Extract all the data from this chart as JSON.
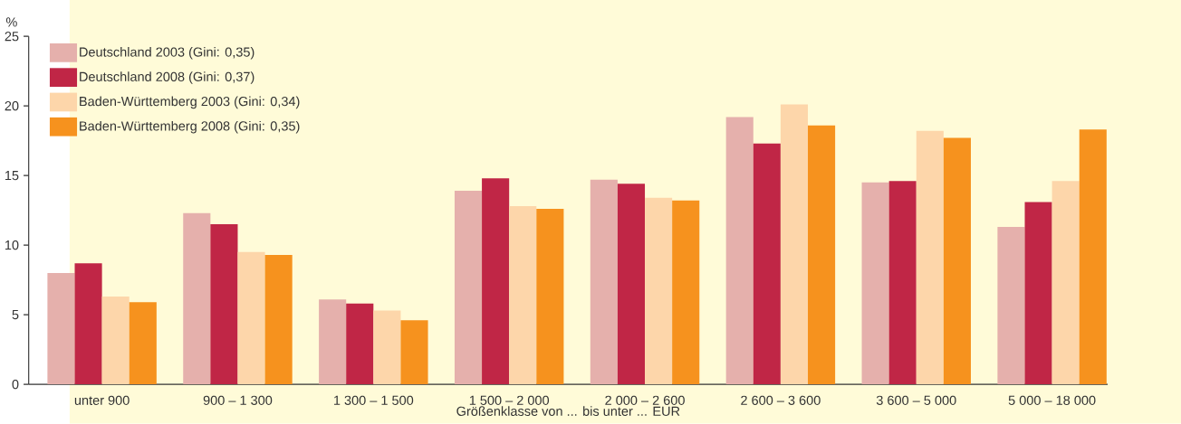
{
  "chart_data": {
    "type": "bar",
    "xlabel": "Größenklasse von ... bis unter ... EUR",
    "ylabel": "%",
    "categories": [
      "unter 900",
      "900 – 1 300",
      "1 300 – 1 500",
      "1 500 – 2 000",
      "2 000 – 2 600",
      "2 600 – 3 600",
      "3 600 – 5 000",
      "5 000 – 18 000"
    ],
    "series": [
      {
        "name": "Deutschland 2003 (Gini: 0,35)",
        "color": "#e5b0ac",
        "values": [
          8.0,
          12.3,
          6.1,
          13.9,
          14.7,
          19.2,
          14.5,
          11.3
        ]
      },
      {
        "name": "Deutschland 2008 (Gini: 0,37)",
        "color": "#c02646",
        "values": [
          8.7,
          11.5,
          5.8,
          14.8,
          14.4,
          17.3,
          14.6,
          13.1
        ]
      },
      {
        "name": "Baden-Württemberg 2003 (Gini: 0,34)",
        "color": "#fdd6aa",
        "values": [
          6.3,
          9.5,
          5.3,
          12.8,
          13.4,
          20.1,
          18.2,
          14.6
        ]
      },
      {
        "name": "Baden-Württemberg 2008 (Gini: 0,35)",
        "color": "#f6921e",
        "values": [
          5.9,
          9.3,
          4.6,
          12.6,
          13.2,
          18.6,
          17.7,
          18.3
        ]
      }
    ],
    "ylim": [
      0,
      25
    ],
    "yticks": [
      0,
      5,
      10,
      15,
      20,
      25
    ],
    "legend": "top left"
  }
}
